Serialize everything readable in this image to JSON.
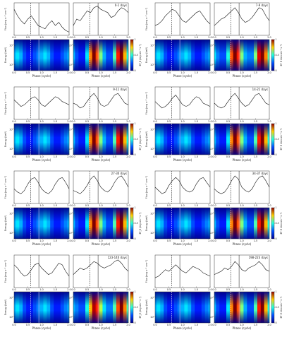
{
  "chart_data": {
    "type": "phase-panels",
    "xlabel": "Phase (cycle)",
    "ylabel": "Flux (erg s⁻¹ cm⁻²)",
    "maplabel": "Energy (keV)",
    "cbar_label": "EF_E (erg cm⁻² s⁻¹)",
    "phase": [
      0,
      0.125,
      0.25,
      0.375,
      0.5,
      0.625,
      0.75,
      0.875,
      1,
      1.125,
      1.25,
      1.375,
      1.5,
      1.625,
      1.75,
      1.875,
      2
    ],
    "xlim": [
      0,
      2
    ],
    "xticks": [
      {
        "value": 0,
        "label": "0.0"
      },
      {
        "value": 0.5,
        "label": "0.5"
      },
      {
        "value": 1,
        "label": "1.0"
      },
      {
        "value": 1.5,
        "label": "1.5"
      },
      {
        "value": 2,
        "label": "2.0"
      }
    ],
    "ylim": [
      0,
      1
    ],
    "elim": [
      -0.3,
      1.3
    ],
    "eticks": [
      {
        "value": 0,
        "label": "10⁰"
      },
      {
        "value": 1,
        "label": "10¹"
      }
    ],
    "clim": [
      0,
      1
    ],
    "cticks": [
      0,
      0.5,
      1
    ],
    "epochs": [
      {
        "label": "0-1 days",
        "markers": [
          0.6,
          0.9
        ],
        "lc_a": [
          0.8,
          0.6,
          0.45,
          0.35,
          0.5,
          0.6,
          0.45,
          0.3,
          0.25,
          0.2,
          0.35,
          0.45,
          0.3,
          0.4,
          0.25,
          0.15,
          0.1
        ],
        "lc_b": [
          0.3,
          0.5,
          0.45,
          0.6,
          0.75,
          0.7,
          0.85,
          0.9,
          0.8,
          0.75,
          0.7,
          0.55,
          0.6,
          0.75,
          0.85,
          0.8,
          0.7
        ],
        "map_a": [
          0.3,
          0.35,
          0.3,
          0.2,
          0.15,
          0.15,
          0.2,
          0.25,
          0.3,
          0.35,
          0.3,
          0.2,
          0.15,
          0.15,
          0.2,
          0.25,
          0.3
        ],
        "map_b": [
          0.3,
          0.2,
          0.15,
          0.15,
          0.35,
          0.75,
          1,
          0.8,
          0.5,
          0.3,
          0.2,
          0.2,
          0.45,
          0.85,
          1,
          0.7,
          0.4
        ]
      },
      {
        "label": "7-9 days",
        "markers": [
          0.6,
          0.9
        ],
        "lc_a": [
          0.3,
          0.35,
          0.45,
          0.6,
          0.7,
          0.8,
          0.75,
          0.6,
          0.45,
          0.4,
          0.5,
          0.6,
          0.7,
          0.75,
          0.6,
          0.45,
          0.35
        ],
        "lc_b": [
          0.3,
          0.4,
          0.5,
          0.55,
          0.65,
          0.75,
          0.85,
          0.7,
          0.5,
          0.4,
          0.45,
          0.55,
          0.7,
          0.85,
          0.8,
          0.6,
          0.45
        ],
        "map_a": [
          0.3,
          0.35,
          0.3,
          0.2,
          0.15,
          0.15,
          0.2,
          0.25,
          0.3,
          0.35,
          0.3,
          0.2,
          0.15,
          0.15,
          0.2,
          0.25,
          0.3
        ],
        "map_b": [
          0.35,
          0.25,
          0.2,
          0.2,
          0.4,
          0.8,
          1,
          0.85,
          0.5,
          0.3,
          0.25,
          0.25,
          0.5,
          0.9,
          1,
          0.75,
          0.45
        ]
      },
      {
        "label": "9-11 days",
        "markers": [
          0.6,
          0.9
        ],
        "lc_a": [
          0.6,
          0.5,
          0.4,
          0.45,
          0.55,
          0.65,
          0.7,
          0.6,
          0.45,
          0.4,
          0.5,
          0.6,
          0.7,
          0.65,
          0.55,
          0.5,
          0.45
        ],
        "lc_b": [
          0.5,
          0.45,
          0.35,
          0.4,
          0.55,
          0.7,
          0.8,
          0.65,
          0.45,
          0.4,
          0.45,
          0.6,
          0.75,
          0.8,
          0.65,
          0.5,
          0.45
        ],
        "map_a": [
          0.3,
          0.35,
          0.3,
          0.2,
          0.15,
          0.15,
          0.2,
          0.25,
          0.3,
          0.35,
          0.3,
          0.2,
          0.15,
          0.15,
          0.2,
          0.25,
          0.3
        ],
        "map_b": [
          0.3,
          0.2,
          0.15,
          0.15,
          0.35,
          0.75,
          1,
          0.8,
          0.5,
          0.3,
          0.2,
          0.2,
          0.45,
          0.85,
          1,
          0.7,
          0.4
        ]
      },
      {
        "label": "14-21 days",
        "markers": [
          0.6,
          0.9
        ],
        "lc_a": [
          0.55,
          0.45,
          0.35,
          0.4,
          0.5,
          0.65,
          0.75,
          0.6,
          0.45,
          0.4,
          0.45,
          0.6,
          0.7,
          0.65,
          0.5,
          0.45,
          0.4
        ],
        "lc_b": [
          0.5,
          0.4,
          0.35,
          0.4,
          0.55,
          0.7,
          0.8,
          0.65,
          0.5,
          0.4,
          0.45,
          0.6,
          0.75,
          0.8,
          0.65,
          0.5,
          0.45
        ],
        "map_a": [
          0.3,
          0.35,
          0.3,
          0.2,
          0.15,
          0.15,
          0.2,
          0.25,
          0.3,
          0.35,
          0.3,
          0.2,
          0.15,
          0.15,
          0.2,
          0.25,
          0.3
        ],
        "map_b": [
          0.3,
          0.2,
          0.15,
          0.15,
          0.35,
          0.75,
          1,
          0.8,
          0.5,
          0.3,
          0.2,
          0.2,
          0.45,
          0.85,
          1,
          0.7,
          0.4
        ]
      },
      {
        "label": "27-30 days",
        "markers": [
          0.6,
          0.9
        ],
        "lc_a": [
          0.45,
          0.35,
          0.3,
          0.4,
          0.6,
          0.75,
          0.8,
          0.65,
          0.45,
          0.35,
          0.3,
          0.4,
          0.6,
          0.75,
          0.8,
          0.65,
          0.45
        ],
        "lc_b": [
          0.4,
          0.35,
          0.3,
          0.4,
          0.55,
          0.75,
          0.85,
          0.7,
          0.5,
          0.4,
          0.35,
          0.45,
          0.65,
          0.8,
          0.85,
          0.7,
          0.5
        ],
        "map_a": [
          0.3,
          0.35,
          0.3,
          0.2,
          0.15,
          0.15,
          0.2,
          0.25,
          0.3,
          0.35,
          0.3,
          0.2,
          0.15,
          0.15,
          0.2,
          0.25,
          0.3
        ],
        "map_b": [
          0.3,
          0.2,
          0.15,
          0.15,
          0.35,
          0.75,
          1,
          0.8,
          0.5,
          0.3,
          0.2,
          0.2,
          0.45,
          0.85,
          1,
          0.7,
          0.4
        ]
      },
      {
        "label": "34-37 days",
        "markers": [
          0.6,
          0.9
        ],
        "lc_a": [
          0.5,
          0.4,
          0.3,
          0.35,
          0.55,
          0.7,
          0.8,
          0.7,
          0.5,
          0.4,
          0.35,
          0.4,
          0.6,
          0.75,
          0.8,
          0.65,
          0.5
        ],
        "lc_b": [
          0.45,
          0.35,
          0.3,
          0.35,
          0.5,
          0.7,
          0.85,
          0.75,
          0.5,
          0.4,
          0.35,
          0.45,
          0.65,
          0.8,
          0.85,
          0.7,
          0.5
        ],
        "map_a": [
          0.3,
          0.35,
          0.3,
          0.2,
          0.15,
          0.15,
          0.2,
          0.25,
          0.3,
          0.35,
          0.3,
          0.2,
          0.15,
          0.15,
          0.2,
          0.25,
          0.3
        ],
        "map_b": [
          0.3,
          0.2,
          0.15,
          0.15,
          0.35,
          0.75,
          1,
          0.8,
          0.5,
          0.3,
          0.2,
          0.2,
          0.45,
          0.85,
          1,
          0.7,
          0.4
        ]
      },
      {
        "label": "123-140 days",
        "markers": [
          0.6,
          0.9
        ],
        "lc_a": [
          0.7,
          0.6,
          0.45,
          0.35,
          0.4,
          0.55,
          0.7,
          0.75,
          0.6,
          0.5,
          0.4,
          0.45,
          0.6,
          0.75,
          0.7,
          0.5,
          0.35
        ],
        "lc_b": [
          0.4,
          0.5,
          0.6,
          0.55,
          0.6,
          0.7,
          0.8,
          0.75,
          0.65,
          0.6,
          0.65,
          0.7,
          0.8,
          0.85,
          0.75,
          0.6,
          0.5
        ],
        "map_a": [
          0.3,
          0.35,
          0.3,
          0.2,
          0.15,
          0.15,
          0.2,
          0.25,
          0.3,
          0.35,
          0.3,
          0.2,
          0.15,
          0.15,
          0.2,
          0.25,
          0.3
        ],
        "map_b": [
          0.3,
          0.25,
          0.2,
          0.2,
          0.4,
          0.7,
          0.95,
          0.85,
          0.55,
          0.35,
          0.25,
          0.25,
          0.45,
          0.8,
          1,
          0.75,
          0.45
        ]
      },
      {
        "label": "198-223 days",
        "markers": [
          0.6,
          0.9
        ],
        "lc_a": [
          0.3,
          0.35,
          0.45,
          0.55,
          0.5,
          0.6,
          0.7,
          0.6,
          0.5,
          0.45,
          0.55,
          0.65,
          0.6,
          0.55,
          0.45,
          0.4,
          0.35
        ],
        "lc_b": [
          0.4,
          0.45,
          0.5,
          0.6,
          0.55,
          0.65,
          0.8,
          0.7,
          0.55,
          0.5,
          0.6,
          0.65,
          0.7,
          0.8,
          0.7,
          0.55,
          0.5
        ],
        "map_a": [
          0.3,
          0.35,
          0.3,
          0.2,
          0.15,
          0.15,
          0.2,
          0.25,
          0.3,
          0.35,
          0.3,
          0.2,
          0.15,
          0.15,
          0.2,
          0.25,
          0.3
        ],
        "map_b": [
          0.3,
          0.2,
          0.15,
          0.15,
          0.35,
          0.75,
          1,
          0.8,
          0.5,
          0.3,
          0.2,
          0.2,
          0.45,
          0.85,
          1,
          0.7,
          0.4
        ]
      }
    ]
  }
}
